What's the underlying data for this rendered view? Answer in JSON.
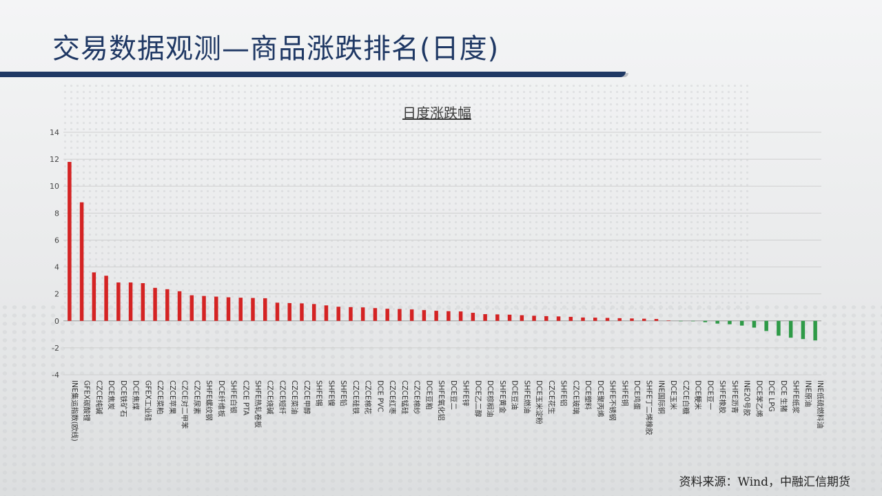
{
  "header": {
    "title": "交易数据观测—商品涨跌排名(日度)"
  },
  "footer": {
    "source": "资料来源：Wind，中融汇信期货"
  },
  "colors": {
    "positive": "#d42323",
    "negative": "#2e9a47",
    "title": "#1f3864",
    "band": "#1f3864"
  },
  "chart_data": {
    "type": "bar",
    "title": "日度涨跌幅",
    "xlabel": "",
    "ylabel": "",
    "ylim": [
      -4,
      14
    ],
    "yticks": [
      14,
      12,
      10,
      8,
      6,
      4,
      2,
      0,
      -2,
      -4
    ],
    "grid": true,
    "categories": [
      "INE集运指数(欧线)",
      "GFEX碳酸锂",
      "CZCE纯碱",
      "DCE焦炭",
      "DCE铁矿石",
      "DCE焦煤",
      "GFEX工业硅",
      "CZCE菜粕",
      "CZCE苹果",
      "CZCE对二甲苯",
      "CZCE尿素",
      "SHFE螺纹钢",
      "DCE纤维板",
      "SHFE白银",
      "CZCE PTA",
      "SHFE热轧卷板",
      "CZCE烧碱",
      "CZCE短纤",
      "CZCE菜油",
      "CZCE甲醇",
      "SHFE锡",
      "SHFE镍",
      "SHFE铅",
      "CZCE硅铁",
      "CZCE棉花",
      "DCE PVC",
      "CZCE红枣",
      "CZCE锰硅",
      "CZCE棉纱",
      "DCE豆粕",
      "SHFE氧化铝",
      "DCE豆二",
      "SHFE锌",
      "DCE乙二醇",
      "DCE棕榈油",
      "SHFE黄金",
      "DCE豆油",
      "SHFE燃油",
      "DCE玉米淀粉",
      "CZCE花生",
      "SHFE铝",
      "CZCE玻璃",
      "DCE塑料",
      "DCE聚丙烯",
      "SHFE不锈钢",
      "SHFE铜",
      "DCE鸡蛋",
      "SHFE丁二烯橡胶",
      "INE国际铜",
      "DCE玉米",
      "CZCE白糖",
      "DCE粳米",
      "DCE豆一",
      "SHFE橡胶",
      "SHFE沥青",
      "INE20号胶",
      "DCE苯乙烯",
      "DCE LPG",
      "DCE 生猪",
      "SHFE纸浆",
      "INE原油",
      "INE低硫燃料油"
    ],
    "values": [
      11.8,
      8.8,
      3.6,
      3.35,
      2.85,
      2.85,
      2.8,
      2.45,
      2.35,
      2.2,
      1.9,
      1.85,
      1.8,
      1.75,
      1.72,
      1.7,
      1.68,
      1.35,
      1.32,
      1.3,
      1.25,
      1.15,
      1.05,
      1.02,
      1.0,
      0.95,
      0.9,
      0.88,
      0.85,
      0.8,
      0.75,
      0.72,
      0.7,
      0.6,
      0.5,
      0.48,
      0.46,
      0.42,
      0.38,
      0.35,
      0.33,
      0.3,
      0.25,
      0.24,
      0.22,
      0.2,
      0.18,
      0.16,
      0.14,
      0.02,
      -0.02,
      -0.03,
      -0.1,
      -0.2,
      -0.25,
      -0.35,
      -0.5,
      -0.75,
      -1.1,
      -1.25,
      -1.35,
      -1.45
    ]
  }
}
